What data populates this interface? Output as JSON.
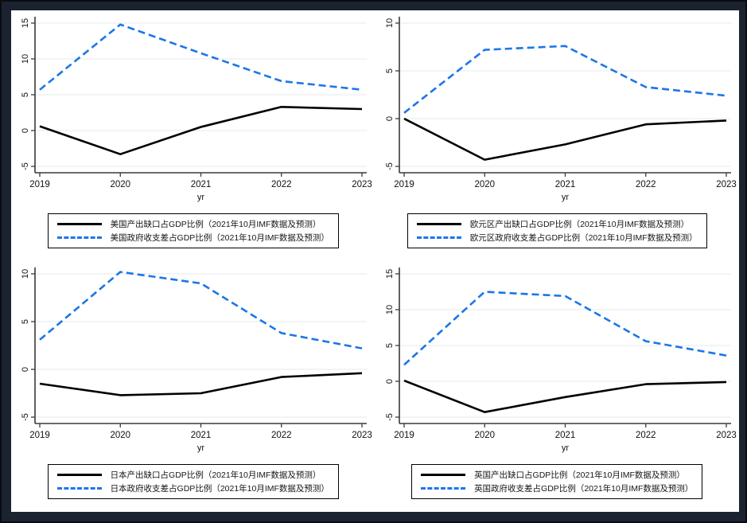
{
  "window": {
    "frame_color": "#1b2230",
    "canvas_color": "#ffffff",
    "edge_color": "#080b11"
  },
  "styles": {
    "grid_color": "#e4e8ee",
    "axis_color": "#3a3a3a",
    "tick_label_color": "#111111",
    "solid_color": "#000000",
    "dashed_color": "#1b76e8"
  },
  "chart_data": [
    {
      "type": "line",
      "region": "美国",
      "x": [
        2019,
        2020,
        2021,
        2022,
        2023
      ],
      "xlabel": "yr",
      "yticks": [
        -5,
        0,
        5,
        10,
        15
      ],
      "ylim": [
        -5.9,
        15.9
      ],
      "grid": true,
      "legend_position": "bottom",
      "series": [
        {
          "name": "美国产出缺口占GDP比例（2021年10月IMF数据及预测）",
          "line": "solid",
          "color": "#000000",
          "values": [
            0.6,
            -3.3,
            0.5,
            3.3,
            3.0
          ]
        },
        {
          "name": "美国政府收支差占GDP比例（2021年10月IMF数据及预测）",
          "line": "dashed",
          "color": "#1b76e8",
          "values": [
            5.7,
            14.8,
            10.8,
            6.9,
            5.7
          ]
        }
      ]
    },
    {
      "type": "line",
      "region": "欧元区",
      "x": [
        2019,
        2020,
        2021,
        2022,
        2023
      ],
      "xlabel": "yr",
      "yticks": [
        -5,
        0,
        5,
        10
      ],
      "ylim": [
        -5.7,
        10.7
      ],
      "grid": true,
      "legend_position": "bottom",
      "series": [
        {
          "name": "欧元区产出缺口占GDP比例（2021年10月IMF数据及预测）",
          "line": "solid",
          "color": "#000000",
          "values": [
            0.0,
            -4.3,
            -2.7,
            -0.6,
            -0.2
          ]
        },
        {
          "name": "欧元区政府收支差占GDP比例（2021年10月IMF数据及预测）",
          "line": "dashed",
          "color": "#1b76e8",
          "values": [
            0.6,
            7.2,
            7.6,
            3.3,
            2.4
          ]
        }
      ]
    },
    {
      "type": "line",
      "region": "日本",
      "x": [
        2019,
        2020,
        2021,
        2022,
        2023
      ],
      "xlabel": "yr",
      "yticks": [
        -5,
        0,
        5,
        10
      ],
      "ylim": [
        -5.7,
        10.7
      ],
      "grid": true,
      "legend_position": "bottom",
      "series": [
        {
          "name": "日本产出缺口占GDP比例（2021年10月IMF数据及预测）",
          "line": "solid",
          "color": "#000000",
          "values": [
            -1.5,
            -2.7,
            -2.5,
            -0.8,
            -0.4
          ]
        },
        {
          "name": "日本政府收支差占GDP比例（2021年10月IMF数据及预测）",
          "line": "dashed",
          "color": "#1b76e8",
          "values": [
            3.1,
            10.2,
            9.0,
            3.8,
            2.2
          ]
        }
      ]
    },
    {
      "type": "line",
      "region": "英国",
      "x": [
        2019,
        2020,
        2021,
        2022,
        2023
      ],
      "xlabel": "yr",
      "yticks": [
        -5,
        0,
        5,
        10,
        15
      ],
      "ylim": [
        -5.9,
        15.9
      ],
      "grid": true,
      "legend_position": "bottom",
      "series": [
        {
          "name": "英国产出缺口占GDP比例（2021年10月IMF数据及预测）",
          "line": "solid",
          "color": "#000000",
          "values": [
            0.1,
            -4.3,
            -2.2,
            -0.4,
            -0.1
          ]
        },
        {
          "name": "英国政府收支差占GDP比例（2021年10月IMF数据及预测）",
          "line": "dashed",
          "color": "#1b76e8",
          "values": [
            2.3,
            12.5,
            11.9,
            5.6,
            3.6
          ]
        }
      ]
    }
  ]
}
